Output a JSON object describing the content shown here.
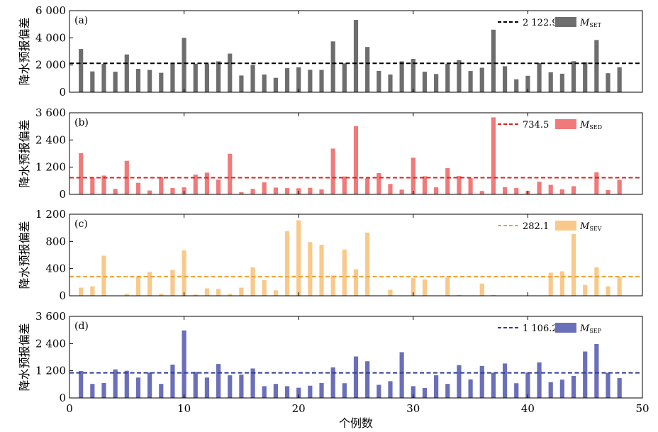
{
  "chart_data": [
    {
      "type": "bar",
      "panel_label": "(a)",
      "color": "#6e6e6e",
      "mean_color": "#000000",
      "ylabel": "降水预报偏差",
      "xlabel": "",
      "ylim": [
        0,
        6000
      ],
      "yticks": [
        0,
        2000,
        4000,
        6000
      ],
      "ytick_labels": [
        "0",
        "2 000",
        "4 000",
        "6 000"
      ],
      "mean": 2122.9,
      "mean_label": "2 122.9",
      "legend_name": "M",
      "legend_sub": "SET",
      "x": [
        1,
        2,
        3,
        4,
        5,
        6,
        7,
        8,
        9,
        10,
        11,
        12,
        13,
        14,
        15,
        16,
        17,
        18,
        19,
        20,
        21,
        22,
        23,
        24,
        25,
        26,
        27,
        28,
        29,
        30,
        31,
        32,
        33,
        34,
        35,
        36,
        37,
        38,
        39,
        40,
        41,
        42,
        43,
        44,
        45,
        46,
        47,
        48
      ],
      "values": [
        3180,
        1530,
        2080,
        1510,
        2780,
        1720,
        1640,
        1430,
        2100,
        4000,
        2100,
        2080,
        2270,
        2840,
        1230,
        2010,
        1300,
        1060,
        1770,
        1830,
        1650,
        1640,
        3740,
        2120,
        5320,
        3330,
        1570,
        1300,
        2270,
        2450,
        1510,
        1340,
        2100,
        2360,
        1560,
        1800,
        4600,
        1910,
        950,
        1210,
        2140,
        1470,
        1360,
        2280,
        2200,
        3840,
        1400,
        1830
      ]
    },
    {
      "type": "bar",
      "panel_label": "(b)",
      "color": "#f07a7a",
      "mean_color": "#e0211d",
      "ylabel": "降水预报偏差",
      "xlabel": "",
      "ylim": [
        0,
        3600
      ],
      "yticks": [
        0,
        1200,
        2400,
        3600
      ],
      "ytick_labels": [
        "0",
        "1 200",
        "2 400",
        "3 600"
      ],
      "mean": 734.5,
      "mean_label": "734.5",
      "legend_name": "M",
      "legend_sub": "SED",
      "x": [
        1,
        2,
        3,
        4,
        5,
        6,
        7,
        8,
        9,
        10,
        11,
        12,
        13,
        14,
        15,
        16,
        17,
        18,
        19,
        20,
        21,
        22,
        23,
        24,
        25,
        26,
        27,
        28,
        29,
        30,
        31,
        32,
        33,
        34,
        35,
        36,
        37,
        38,
        39,
        40,
        41,
        42,
        43,
        44,
        45,
        46,
        47,
        48
      ],
      "values": [
        1820,
        720,
        830,
        240,
        1480,
        510,
        170,
        760,
        280,
        310,
        870,
        960,
        650,
        1790,
        100,
        240,
        530,
        300,
        280,
        270,
        290,
        220,
        2020,
        790,
        3010,
        710,
        940,
        460,
        210,
        1620,
        800,
        310,
        1160,
        810,
        710,
        150,
        3400,
        320,
        280,
        160,
        560,
        420,
        220,
        360,
        10,
        970,
        190,
        640
      ]
    },
    {
      "type": "bar",
      "panel_label": "(c)",
      "color": "#f8c98a",
      "mean_color": "#f2a23a",
      "ylabel": "降水预报偏差",
      "xlabel": "",
      "ylim": [
        0,
        1200
      ],
      "yticks": [
        0,
        400,
        800,
        1200
      ],
      "ytick_labels": [
        "0",
        "400",
        "800",
        "1 200"
      ],
      "mean": 282.1,
      "mean_label": "282.1",
      "legend_name": "M",
      "legend_sub": "SEV",
      "x": [
        1,
        2,
        3,
        4,
        5,
        6,
        7,
        8,
        9,
        10,
        11,
        12,
        13,
        14,
        15,
        16,
        17,
        18,
        19,
        20,
        21,
        22,
        23,
        24,
        25,
        26,
        27,
        28,
        29,
        30,
        31,
        32,
        33,
        34,
        35,
        36,
        37,
        38,
        39,
        40,
        41,
        42,
        43,
        44,
        45,
        46,
        47,
        48
      ],
      "values": [
        120,
        140,
        590,
        0,
        30,
        290,
        350,
        30,
        380,
        670,
        20,
        110,
        100,
        30,
        120,
        420,
        230,
        80,
        950,
        1110,
        790,
        750,
        300,
        680,
        390,
        930,
        0,
        90,
        0,
        260,
        240,
        0,
        270,
        10,
        0,
        180,
        10,
        0,
        0,
        0,
        0,
        340,
        360,
        910,
        160,
        420,
        140,
        280
      ]
    },
    {
      "type": "bar",
      "panel_label": "(d)",
      "color": "#6a6fba",
      "mean_color": "#2f3c98",
      "ylabel": "降水预报偏差",
      "xlabel": "个例数",
      "ylim": [
        0,
        3600
      ],
      "yticks": [
        0,
        1200,
        2400,
        3600
      ],
      "ytick_labels": [
        "0",
        "1 200",
        "2 400",
        "3 600"
      ],
      "xlim": [
        0,
        50
      ],
      "xticks": [
        0,
        10,
        20,
        30,
        40,
        50
      ],
      "xtick_labels": [
        "0",
        "10",
        "20",
        "30",
        "40",
        "50"
      ],
      "mean": 1106.2,
      "mean_label": "1 106.2",
      "legend_name": "M",
      "legend_sub": "SEP",
      "x": [
        1,
        2,
        3,
        4,
        5,
        6,
        7,
        8,
        9,
        10,
        11,
        12,
        13,
        14,
        15,
        16,
        17,
        18,
        19,
        20,
        21,
        22,
        23,
        24,
        25,
        26,
        27,
        28,
        29,
        30,
        31,
        32,
        33,
        34,
        35,
        36,
        37,
        38,
        39,
        40,
        41,
        42,
        43,
        44,
        45,
        46,
        47,
        48
      ],
      "values": [
        1190,
        620,
        660,
        1260,
        1200,
        900,
        1120,
        620,
        1470,
        2980,
        1150,
        900,
        1500,
        1000,
        1030,
        1300,
        520,
        620,
        520,
        450,
        540,
        660,
        1350,
        650,
        1830,
        1620,
        580,
        740,
        2020,
        520,
        440,
        1000,
        620,
        1450,
        820,
        1410,
        1110,
        1520,
        650,
        1120,
        1570,
        700,
        810,
        970,
        2050,
        2380,
        1110,
        880
      ]
    }
  ]
}
